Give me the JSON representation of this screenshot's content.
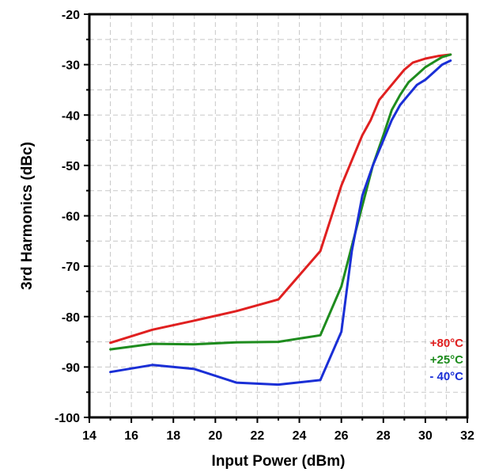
{
  "chart_data": {
    "type": "line",
    "title": "",
    "xlabel": "Input Power (dBm)",
    "ylabel": "3rd Harmonics (dBc)",
    "xlim": [
      14,
      32
    ],
    "ylim": [
      -100,
      -20
    ],
    "x_ticks": [
      14,
      16,
      18,
      20,
      22,
      24,
      26,
      28,
      30,
      32
    ],
    "y_ticks": [
      -100,
      -90,
      -80,
      -70,
      -60,
      -50,
      -40,
      -30,
      -20
    ],
    "x_tick_labels": [
      "14",
      "16",
      "18",
      "20",
      "22",
      "24",
      "26",
      "28",
      "30",
      "32"
    ],
    "y_tick_labels": [
      "-100",
      "-90",
      "-80",
      "-70",
      "-60",
      "-50",
      "-40",
      "-30",
      "-20"
    ],
    "grid": true,
    "legend_position": "bottom-right",
    "series": [
      {
        "name": "+80°C",
        "color": "#e02020",
        "points": [
          [
            15,
            -85.2
          ],
          [
            17,
            -82.6
          ],
          [
            19,
            -80.8
          ],
          [
            21,
            -78.9
          ],
          [
            23,
            -76.6
          ],
          [
            25,
            -67
          ],
          [
            26,
            -54
          ],
          [
            26.6,
            -48
          ],
          [
            27,
            -44
          ],
          [
            27.4,
            -41
          ],
          [
            27.8,
            -37
          ],
          [
            28.2,
            -35
          ],
          [
            28.6,
            -33
          ],
          [
            29,
            -31
          ],
          [
            29.4,
            -29.6
          ],
          [
            30,
            -28.8
          ],
          [
            30.6,
            -28.3
          ],
          [
            31.2,
            -28
          ]
        ]
      },
      {
        "name": "+25°C",
        "color": "#1e8c1e",
        "points": [
          [
            15,
            -86.5
          ],
          [
            17,
            -85.4
          ],
          [
            19,
            -85.5
          ],
          [
            21,
            -85.1
          ],
          [
            23,
            -85
          ],
          [
            25,
            -83.7
          ],
          [
            26,
            -74
          ],
          [
            26.5,
            -66
          ],
          [
            27,
            -58
          ],
          [
            27.5,
            -50
          ],
          [
            28,
            -44
          ],
          [
            28.4,
            -39
          ],
          [
            28.8,
            -36
          ],
          [
            29.2,
            -33.5
          ],
          [
            29.6,
            -32
          ],
          [
            30,
            -30.5
          ],
          [
            30.4,
            -29.5
          ],
          [
            30.8,
            -28.5
          ],
          [
            31.2,
            -28
          ]
        ]
      },
      {
        "name": "- 40°C",
        "color": "#1a2fd6",
        "points": [
          [
            15,
            -91
          ],
          [
            17,
            -89.6
          ],
          [
            19,
            -90.4
          ],
          [
            21,
            -93.1
          ],
          [
            23,
            -93.5
          ],
          [
            25,
            -92.6
          ],
          [
            26,
            -83
          ],
          [
            26.5,
            -67
          ],
          [
            27,
            -56
          ],
          [
            27.5,
            -50
          ],
          [
            28,
            -45
          ],
          [
            28.4,
            -41
          ],
          [
            28.8,
            -38
          ],
          [
            29.2,
            -36
          ],
          [
            29.6,
            -34
          ],
          [
            30,
            -33
          ],
          [
            30.4,
            -31.5
          ],
          [
            30.8,
            -30
          ],
          [
            31.2,
            -29.2
          ]
        ]
      }
    ]
  }
}
